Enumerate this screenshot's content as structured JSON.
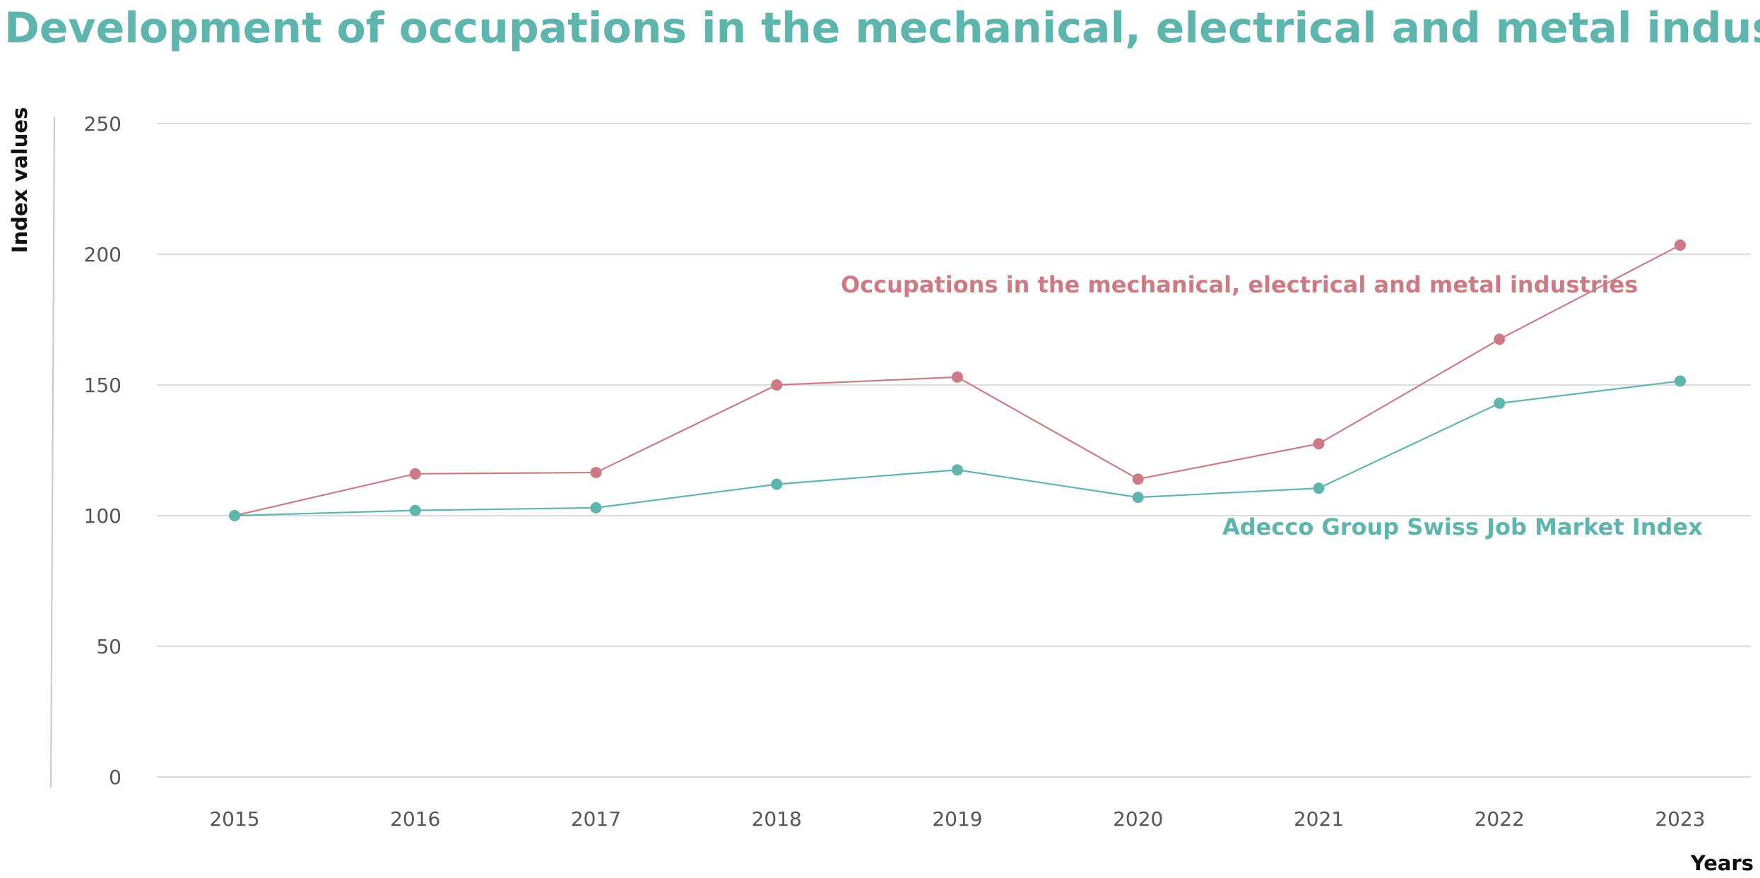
{
  "colors": {
    "accent_teal": "#5fb5ae",
    "accent_pink": "#cc7b84",
    "grid": "#dcdcdc",
    "axis_line": "#c8c8c8"
  },
  "chart_data": {
    "type": "line",
    "title": "Development of occupations in the mechanical, electrical and metal industries",
    "xlabel": "Years",
    "ylabel": "Index values",
    "x": [
      "2015",
      "2016",
      "2017",
      "2018",
      "2019",
      "2020",
      "2021",
      "2022",
      "2023"
    ],
    "ylim": [
      0,
      250
    ],
    "yticks": [
      "0",
      "50",
      "100",
      "150",
      "200",
      "250"
    ],
    "grid": true,
    "legend": "direct labels",
    "series": [
      {
        "name": "Occupations in the mechanical, electrical and metal industries",
        "color": "#cc7b84",
        "values": [
          100,
          116,
          116.5,
          150,
          153,
          114,
          127.5,
          167.5,
          203.5
        ]
      },
      {
        "name": "Adecco Group Swiss Job Market Index",
        "color": "#5fb5ae",
        "values": [
          100,
          102,
          103,
          112,
          117.5,
          107,
          110.5,
          143,
          151.5
        ]
      }
    ]
  }
}
